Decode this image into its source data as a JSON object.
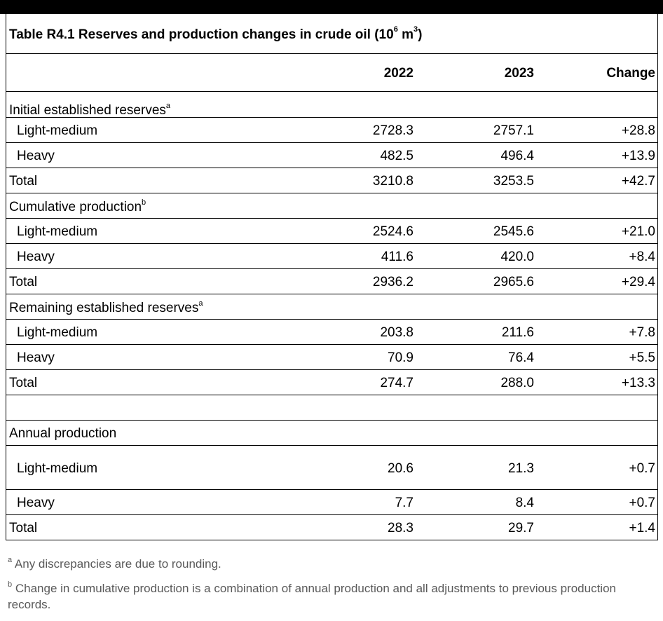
{
  "title": {
    "prefix": "Table R4.1  Reserves and production changes in crude oil (10",
    "sup1": "6",
    "middle": " m",
    "sup2": "3",
    "suffix": ")"
  },
  "headers": {
    "col0": "",
    "col1": "2022",
    "col2": "2023",
    "col3": "Change"
  },
  "sections": [
    {
      "label": "Initial established reserves",
      "sup": "a",
      "rows": [
        {
          "label": "Light-medium",
          "v2022": "2728.3",
          "v2023": "2757.1",
          "change": "+28.8"
        },
        {
          "label": "Heavy",
          "v2022": "482.5",
          "v2023": "496.4",
          "change": "+13.9"
        }
      ],
      "total": {
        "label": "Total",
        "v2022": "3210.8",
        "v2023": "3253.5",
        "change": "+42.7"
      }
    },
    {
      "label": "Cumulative production",
      "sup": "b",
      "rows": [
        {
          "label": "Light-medium",
          "v2022": "2524.6",
          "v2023": "2545.6",
          "change": "+21.0"
        },
        {
          "label": "Heavy",
          "v2022": "411.6",
          "v2023": "420.0",
          "change": "+8.4"
        }
      ],
      "total": {
        "label": "Total",
        "v2022": "2936.2",
        "v2023": "2965.6",
        "change": "+29.4"
      }
    },
    {
      "label": "Remaining established reserves",
      "sup": "a",
      "rows": [
        {
          "label": "Light-medium",
          "v2022": "203.8",
          "v2023": "211.6",
          "change": "+7.8"
        },
        {
          "label": "Heavy",
          "v2022": "70.9",
          "v2023": "76.4",
          "change": "+5.5"
        }
      ],
      "total": {
        "label": "Total",
        "v2022": "274.7",
        "v2023": "288.0",
        "change": "+13.3"
      }
    },
    {
      "label": "Annual production",
      "sup": "",
      "rows": [
        {
          "label": "Light-medium",
          "v2022": "20.6",
          "v2023": "21.3",
          "change": "+0.7"
        },
        {
          "label": "Heavy",
          "v2022": "7.7",
          "v2023": "8.4",
          "change": "+0.7"
        }
      ],
      "total": {
        "label": "Total",
        "v2022": "28.3",
        "v2023": "29.7",
        "change": "+1.4"
      }
    }
  ],
  "footnotes": [
    {
      "mark": "a",
      "text": " Any discrepancies are due to rounding."
    },
    {
      "mark": "b",
      "text": " Change in cumulative production is a combination of annual production and all adjustments to previous production records."
    }
  ]
}
